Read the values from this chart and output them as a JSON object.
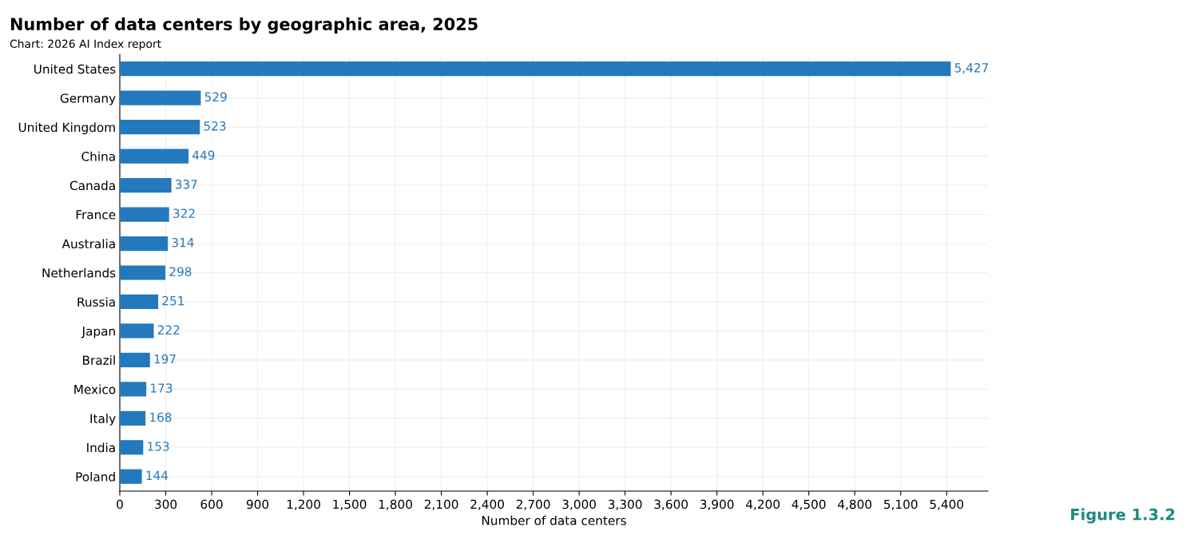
{
  "chart_data": {
    "type": "bar",
    "orientation": "horizontal",
    "title": "Number of data centers by geographic area, 2025",
    "subtitle": "Chart: 2026 AI Index report",
    "xlabel": "Number of data centers",
    "annotations": [
      "Figure 1.3.2"
    ],
    "categories": [
      "United States",
      "Germany",
      "United Kingdom",
      "China",
      "Canada",
      "France",
      "Australia",
      "Netherlands",
      "Russia",
      "Japan",
      "Brazil",
      "Mexico",
      "Italy",
      "India",
      "Poland"
    ],
    "values": [
      5427,
      529,
      523,
      449,
      337,
      322,
      314,
      298,
      251,
      222,
      197,
      173,
      168,
      153,
      144
    ],
    "value_labels": [
      "5,427",
      "529",
      "523",
      "449",
      "337",
      "322",
      "314",
      "298",
      "251",
      "222",
      "197",
      "173",
      "168",
      "153",
      "144"
    ],
    "color": "#2479bd",
    "xlim": [
      0,
      5670
    ],
    "xticks": [
      0,
      {
        "value": 300,
        "label": "300"
      },
      {
        "value": 600,
        "label": "600"
      },
      {
        "value": 900,
        "label": "900"
      },
      {
        "value": 1200,
        "label": "1,200"
      },
      {
        "value": 1500,
        "label": "1,500"
      },
      {
        "value": 1800,
        "label": "1,800"
      },
      {
        "value": 2100,
        "label": "2,100"
      },
      {
        "value": 2400,
        "label": "2,400"
      },
      {
        "value": 2700,
        "label": "2,700"
      },
      {
        "value": 3000,
        "label": "3,000"
      },
      {
        "value": 3300,
        "label": "3,300"
      },
      {
        "value": 3600,
        "label": "3,600"
      },
      {
        "value": 3900,
        "label": "3,900"
      },
      {
        "value": 4200,
        "label": "4,200"
      },
      {
        "value": 4500,
        "label": "4,500"
      },
      {
        "value": 4800,
        "label": "4,800"
      },
      {
        "value": 5100,
        "label": "5,100"
      },
      {
        "value": 5400,
        "label": "5,400"
      }
    ],
    "grid": true,
    "legend": false
  }
}
